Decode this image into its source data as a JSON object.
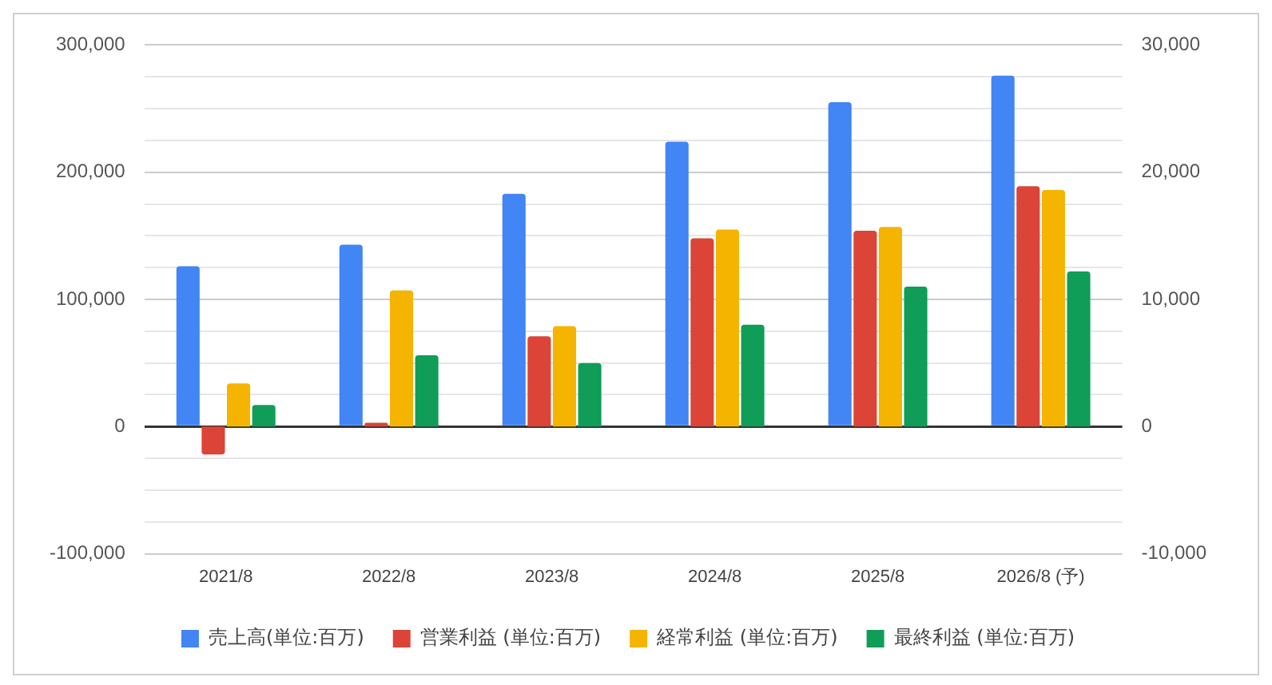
{
  "chart_data": {
    "type": "bar",
    "categories": [
      "2021/8",
      "2022/8",
      "2023/8",
      "2024/8",
      "2025/8",
      "2026/8 (予)"
    ],
    "series": [
      {
        "name": "売上高(単位:百万)",
        "color": "#4285f4",
        "values": [
          126000,
          143000,
          183000,
          224000,
          255000,
          276000
        ]
      },
      {
        "name": "営業利益 (単位:百万)",
        "color": "#db4437",
        "axis": "y2",
        "values": [
          -2200,
          300,
          7100,
          14800,
          15400,
          18900
        ]
      },
      {
        "name": "経常利益 (単位:百万)",
        "color": "#f4b400",
        "axis": "y2",
        "values": [
          3400,
          10700,
          7900,
          15500,
          15700,
          18600
        ]
      },
      {
        "name": "最終利益 (単位:百万)",
        "color": "#0f9d58",
        "axis": "y2",
        "values": [
          1700,
          5600,
          5000,
          8000,
          11000,
          12200
        ]
      }
    ],
    "ylim": [
      -100000,
      300000
    ],
    "yticks": [
      {
        "value": -100000,
        "label": "-100,000"
      },
      {
        "value": -75000,
        "label": null
      },
      {
        "value": -50000,
        "label": null
      },
      {
        "value": -25000,
        "label": null
      },
      0,
      {
        "value": 25000,
        "label": null
      },
      {
        "value": 50000,
        "label": null
      },
      {
        "value": 75000,
        "label": null
      },
      {
        "value": 100000,
        "label": "100,000"
      },
      {
        "value": 125000,
        "label": null
      },
      {
        "value": 150000,
        "label": null
      },
      {
        "value": 175000,
        "label": null
      },
      {
        "value": 200000,
        "label": "200,000"
      },
      {
        "value": 225000,
        "label": null
      },
      {
        "value": 250000,
        "label": null
      },
      {
        "value": 275000,
        "label": null
      },
      {
        "value": 300000,
        "label": "300,000"
      }
    ],
    "y2lim": [
      -10000,
      30000
    ],
    "y2ticks": [
      {
        "value": -10000,
        "label": "-10,000"
      },
      0,
      {
        "value": 10000,
        "label": "10,000"
      },
      {
        "value": 20000,
        "label": "20,000"
      },
      {
        "value": 30000,
        "label": "30,000"
      }
    ],
    "grid": "y",
    "legend": "bottom"
  }
}
